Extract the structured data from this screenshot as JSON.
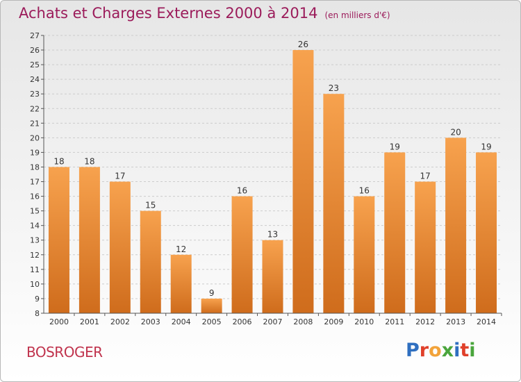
{
  "header": {
    "title": "Achats et Charges Externes 2000 à 2014",
    "subtitle": "(en milliers d'€)"
  },
  "footer": {
    "city": "BOSROGER",
    "logo": {
      "letters": [
        "P",
        "r",
        "o",
        "x",
        "i",
        "t",
        "i"
      ],
      "colors": [
        "#2f6fc0",
        "#e0402a",
        "#f2a33a",
        "#4aa53c",
        "#2f6fc0",
        "#e0402a",
        "#4aa53c"
      ]
    }
  },
  "colors": {
    "bar_light": "#f7a24e",
    "bar_dark": "#cf6c1c",
    "grid": "#cccccc",
    "axis": "#555555"
  },
  "chart_data": {
    "type": "bar",
    "title": "Achats et Charges Externes 2000 à 2014",
    "subtitle": "(en milliers d'€)",
    "categories": [
      "2000",
      "2001",
      "2002",
      "2003",
      "2004",
      "2005",
      "2006",
      "2007",
      "2008",
      "2009",
      "2010",
      "2011",
      "2012",
      "2013",
      "2014"
    ],
    "values": [
      18,
      18,
      17,
      15,
      12,
      9,
      16,
      13,
      26,
      23,
      16,
      19,
      17,
      20,
      19
    ],
    "ylim": [
      8,
      27
    ],
    "yticks": [
      8,
      9,
      10,
      11,
      12,
      13,
      14,
      15,
      16,
      17,
      18,
      19,
      20,
      21,
      22,
      23,
      24,
      25,
      26,
      27
    ],
    "grid": true,
    "legend": "none"
  }
}
